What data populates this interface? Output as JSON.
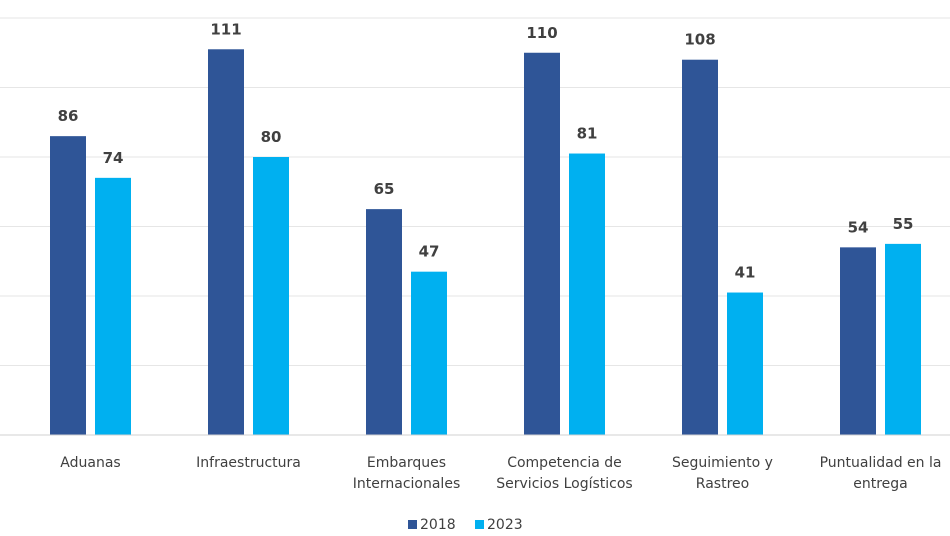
{
  "chart_data": {
    "type": "bar",
    "categories": [
      [
        "Aduanas"
      ],
      [
        "Infraestructura"
      ],
      [
        "Embarques",
        "Internacionales"
      ],
      [
        "Competencia de",
        "Servicios Logísticos"
      ],
      [
        "Seguimiento y",
        "Rastreo"
      ],
      [
        "Puntualidad en la",
        "entrega"
      ]
    ],
    "series": [
      {
        "name": "2018",
        "values": [
          86,
          111,
          65,
          110,
          108,
          54
        ],
        "color": "#2F5597"
      },
      {
        "name": "2023",
        "values": [
          74,
          80,
          47,
          81,
          41,
          55
        ],
        "color": "#00B0F0"
      }
    ],
    "ylim": [
      0,
      120
    ],
    "grid": true,
    "legend": "bottom-center"
  }
}
